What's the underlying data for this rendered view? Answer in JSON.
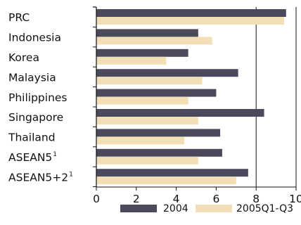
{
  "chart_data": {
    "type": "bar",
    "orientation": "horizontal",
    "categories": [
      {
        "label": "PRC",
        "sup": ""
      },
      {
        "label": "Indonesia",
        "sup": ""
      },
      {
        "label": "Korea",
        "sup": ""
      },
      {
        "label": "Malaysia",
        "sup": ""
      },
      {
        "label": "Philippines",
        "sup": ""
      },
      {
        "label": "Singapore",
        "sup": ""
      },
      {
        "label": "Thailand",
        "sup": ""
      },
      {
        "label": "ASEAN5",
        "sup": "1"
      },
      {
        "label": "ASEAN5+2",
        "sup": "1"
      }
    ],
    "series": [
      {
        "name": "2004",
        "color": "#4a4a5c",
        "values": [
          9.5,
          5.1,
          4.6,
          7.1,
          6.0,
          8.4,
          6.2,
          6.3,
          7.6
        ]
      },
      {
        "name": "2005Q1-Q3",
        "color": "#f2dfb5",
        "values": [
          9.4,
          5.8,
          3.5,
          5.3,
          4.6,
          5.1,
          4.4,
          5.1,
          7.0
        ]
      }
    ],
    "xlim": [
      0,
      10
    ],
    "xticks": [
      0,
      2,
      4,
      6,
      8,
      10
    ],
    "gridlines_x": [
      8,
      10
    ],
    "legend_position": "bottom"
  }
}
